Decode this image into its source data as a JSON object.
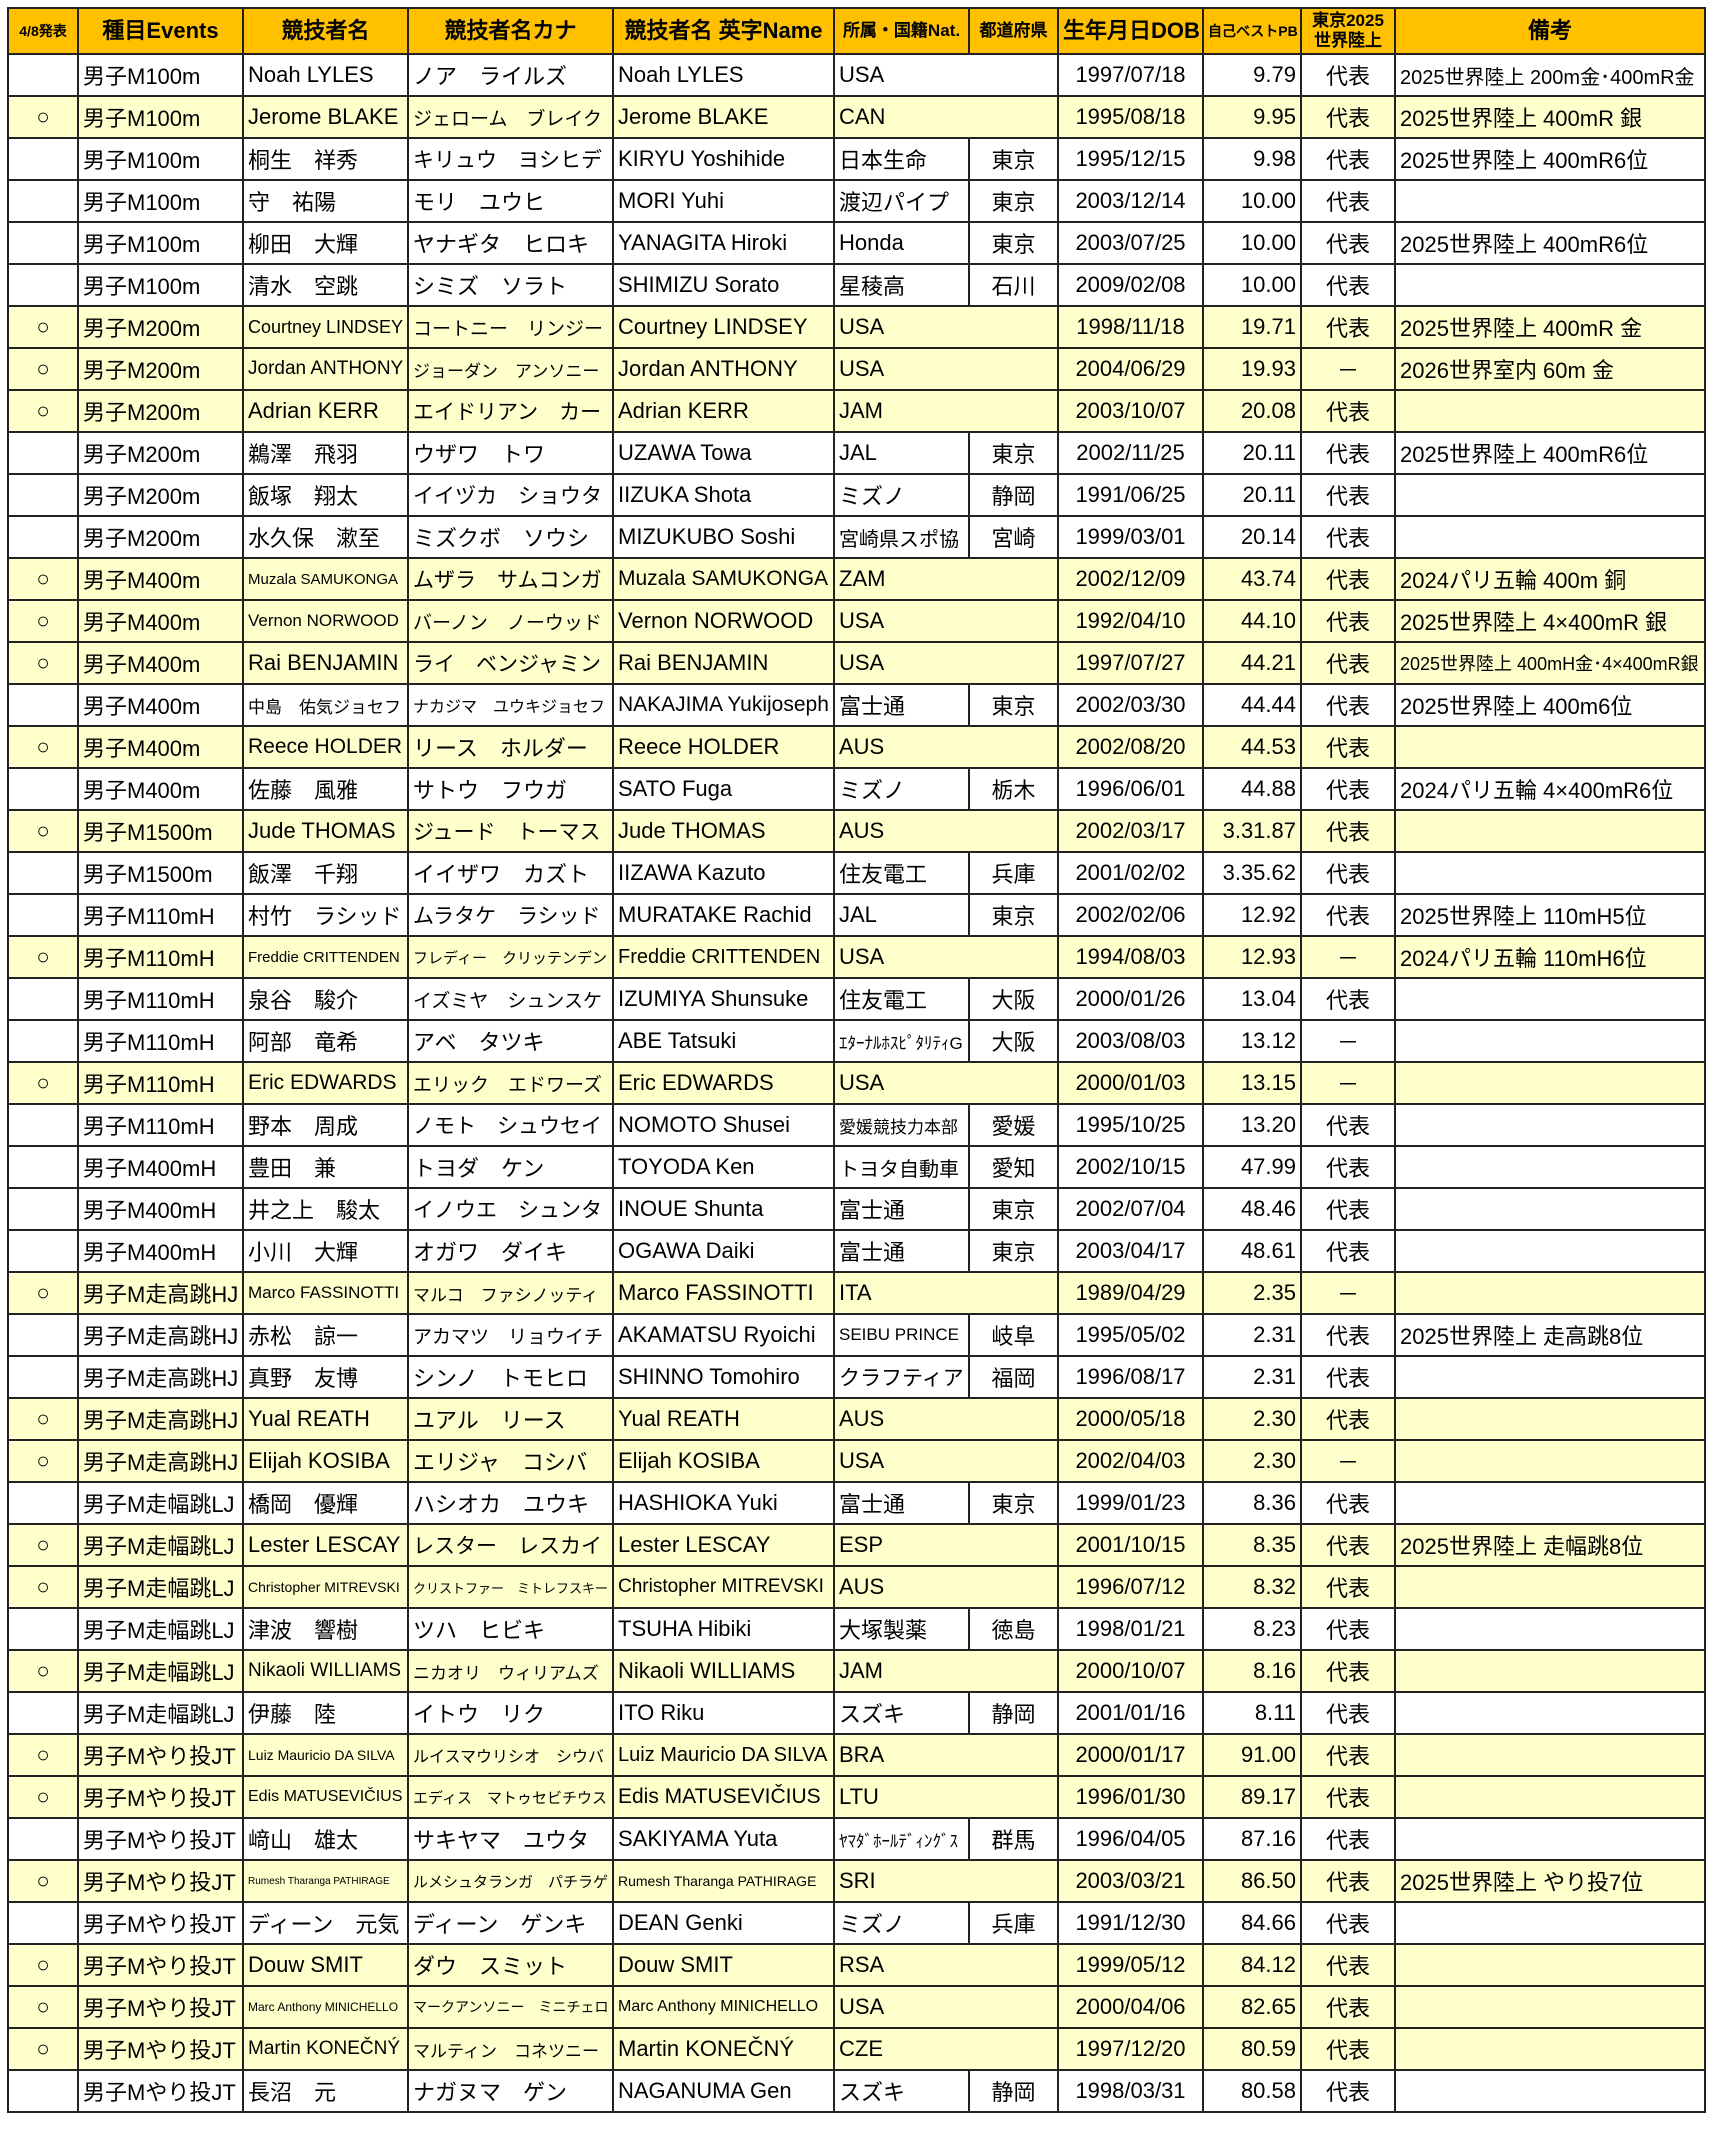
{
  "colors": {
    "header": "#FFC000",
    "highlight_row": "#FFFFCC",
    "border": "#222222"
  },
  "headers": [
    "4/8発表",
    "種目Events",
    "競技者名",
    "競技者名カナ",
    "競技者名 英字Name",
    "所属・国籍Nat.",
    "都道府県",
    "生年月日DOB",
    "自己ベストPB",
    "東京2025 世界陸上",
    "備考"
  ],
  "rows": [
    [
      "",
      "男子M100m",
      "Noah LYLES",
      "ノア　ライルズ",
      "Noah LYLES",
      "USA",
      "",
      "1997/07/18",
      "9.79",
      "代表",
      "2025世界陸上 200m金･400mR金"
    ],
    [
      "○",
      "男子M100m",
      "Jerome BLAKE",
      "ジェローム　ブレイク",
      "Jerome BLAKE",
      "CAN",
      "",
      "1995/08/18",
      "9.95",
      "代表",
      "2025世界陸上 400mR 銀"
    ],
    [
      "",
      "男子M100m",
      "桐生　祥秀",
      "キリュウ　ヨシヒデ",
      "KIRYU Yoshihide",
      "日本生命",
      "東京",
      "1995/12/15",
      "9.98",
      "代表",
      "2025世界陸上 400mR6位"
    ],
    [
      "",
      "男子M100m",
      "守　祐陽",
      "モリ　ユウヒ",
      "MORI Yuhi",
      "渡辺パイプ",
      "東京",
      "2003/12/14",
      "10.00",
      "代表",
      ""
    ],
    [
      "",
      "男子M100m",
      "柳田　大輝",
      "ヤナギタ　ヒロキ",
      "YANAGITA Hiroki",
      "Honda",
      "東京",
      "2003/07/25",
      "10.00",
      "代表",
      "2025世界陸上 400mR6位"
    ],
    [
      "",
      "男子M100m",
      "清水　空跳",
      "シミズ　ソラト",
      "SHIMIZU Sorato",
      "星稜高",
      "石川",
      "2009/02/08",
      "10.00",
      "代表",
      ""
    ],
    [
      "○",
      "男子M200m",
      "Courtney LINDSEY",
      "コートニー　リンジー",
      "Courtney LINDSEY",
      "USA",
      "",
      "1998/11/18",
      "19.71",
      "代表",
      "2025世界陸上 400mR 金"
    ],
    [
      "○",
      "男子M200m",
      "Jordan ANTHONY",
      "ジョーダン　アンソニー",
      "Jordan ANTHONY",
      "USA",
      "",
      "2004/06/29",
      "19.93",
      "－",
      "2026世界室内 60m 金"
    ],
    [
      "○",
      "男子M200m",
      "Adrian KERR",
      "エイドリアン　カー",
      "Adrian KERR",
      "JAM",
      "",
      "2003/10/07",
      "20.08",
      "代表",
      ""
    ],
    [
      "",
      "男子M200m",
      "鵜澤　飛羽",
      "ウザワ　トワ",
      "UZAWA Towa",
      "JAL",
      "東京",
      "2002/11/25",
      "20.11",
      "代表",
      "2025世界陸上 400mR6位"
    ],
    [
      "",
      "男子M200m",
      "飯塚　翔太",
      "イイヅカ　ショウタ",
      "IIZUKA Shota",
      "ミズノ",
      "静岡",
      "1991/06/25",
      "20.11",
      "代表",
      ""
    ],
    [
      "",
      "男子M200m",
      "水久保　漱至",
      "ミズクボ　ソウシ",
      "MIZUKUBO Soshi",
      "宮崎県スポ協",
      "宮崎",
      "1999/03/01",
      "20.14",
      "代表",
      ""
    ],
    [
      "○",
      "男子M400m",
      "Muzala SAMUKONGA",
      "ムザラ　サムコンガ",
      "Muzala SAMUKONGA",
      "ZAM",
      "",
      "2002/12/09",
      "43.74",
      "代表",
      "2024パリ五輪 400m 銅"
    ],
    [
      "○",
      "男子M400m",
      "Vernon NORWOOD",
      "バーノン　ノーウッド",
      "Vernon NORWOOD",
      "USA",
      "",
      "1992/04/10",
      "44.10",
      "代表",
      "2025世界陸上 4×400mR 銀"
    ],
    [
      "○",
      "男子M400m",
      "Rai BENJAMIN",
      "ライ　ベンジャミン",
      "Rai BENJAMIN",
      "USA",
      "",
      "1997/07/27",
      "44.21",
      "代表",
      "2025世界陸上 400mH金･4×400mR銀"
    ],
    [
      "",
      "男子M400m",
      "中島　佑気ジョセフ",
      "ナカジマ　ユウキジョセフ",
      "NAKAJIMA Yukijoseph",
      "富士通",
      "東京",
      "2002/03/30",
      "44.44",
      "代表",
      "2025世界陸上 400m6位"
    ],
    [
      "○",
      "男子M400m",
      "Reece HOLDER",
      "リース　ホルダー",
      "Reece HOLDER",
      "AUS",
      "",
      "2002/08/20",
      "44.53",
      "代表",
      ""
    ],
    [
      "",
      "男子M400m",
      "佐藤　風雅",
      "サトウ　フウガ",
      "SATO Fuga",
      "ミズノ",
      "栃木",
      "1996/06/01",
      "44.88",
      "代表",
      "2024パリ五輪 4×400mR6位"
    ],
    [
      "○",
      "男子M1500m",
      "Jude THOMAS",
      "ジュード　トーマス",
      "Jude THOMAS",
      "AUS",
      "",
      "2002/03/17",
      "3.31.87",
      "代表",
      ""
    ],
    [
      "",
      "男子M1500m",
      "飯澤　千翔",
      "イイザワ　カズト",
      "IIZAWA Kazuto",
      "住友電工",
      "兵庫",
      "2001/02/02",
      "3.35.62",
      "代表",
      ""
    ],
    [
      "",
      "男子M110mH",
      "村竹　ラシッド",
      "ムラタケ　ラシッド",
      "MURATAKE Rachid",
      "JAL",
      "東京",
      "2002/02/06",
      "12.92",
      "代表",
      "2025世界陸上 110mH5位"
    ],
    [
      "○",
      "男子M110mH",
      "Freddie CRITTENDEN",
      "フレディー　クリッテンデン",
      "Freddie CRITTENDEN",
      "USA",
      "",
      "1994/08/03",
      "12.93",
      "－",
      "2024パリ五輪 110mH6位"
    ],
    [
      "",
      "男子M110mH",
      "泉谷　駿介",
      "イズミヤ　シュンスケ",
      "IZUMIYA Shunsuke",
      "住友電工",
      "大阪",
      "2000/01/26",
      "13.04",
      "代表",
      ""
    ],
    [
      "",
      "男子M110mH",
      "阿部　竜希",
      "アベ　タツキ",
      "ABE Tatsuki",
      "ｴﾀｰﾅﾙﾎｽﾋﾟﾀﾘﾃｨG",
      "大阪",
      "2003/08/03",
      "13.12",
      "－",
      ""
    ],
    [
      "○",
      "男子M110mH",
      "Eric EDWARDS",
      "エリック　エドワーズ",
      "Eric EDWARDS",
      "USA",
      "",
      "2000/01/03",
      "13.15",
      "－",
      ""
    ],
    [
      "",
      "男子M110mH",
      "野本　周成",
      "ノモト　シュウセイ",
      "NOMOTO Shusei",
      "愛媛競技力本部",
      "愛媛",
      "1995/10/25",
      "13.20",
      "代表",
      ""
    ],
    [
      "",
      "男子M400mH",
      "豊田　兼",
      "トヨダ　ケン",
      "TOYODA Ken",
      "トヨタ自動車",
      "愛知",
      "2002/10/15",
      "47.99",
      "代表",
      ""
    ],
    [
      "",
      "男子M400mH",
      "井之上　駿太",
      "イノウエ　シュンタ",
      "INOUE Shunta",
      "富士通",
      "東京",
      "2002/07/04",
      "48.46",
      "代表",
      ""
    ],
    [
      "",
      "男子M400mH",
      "小川　大輝",
      "オガワ　ダイキ",
      "OGAWA Daiki",
      "富士通",
      "東京",
      "2003/04/17",
      "48.61",
      "代表",
      ""
    ],
    [
      "○",
      "男子M走高跳HJ",
      "Marco FASSINOTTI",
      "マルコ　ファシノッティ",
      "Marco FASSINOTTI",
      "ITA",
      "",
      "1989/04/29",
      "2.35",
      "－",
      ""
    ],
    [
      "",
      "男子M走高跳HJ",
      "赤松　諒一",
      "アカマツ　リョウイチ",
      "AKAMATSU Ryoichi",
      "SEIBU PRINCE",
      "岐阜",
      "1995/05/02",
      "2.31",
      "代表",
      "2025世界陸上 走高跳8位"
    ],
    [
      "",
      "男子M走高跳HJ",
      "真野　友博",
      "シンノ　トモヒロ",
      "SHINNO Tomohiro",
      "クラフティア",
      "福岡",
      "1996/08/17",
      "2.31",
      "代表",
      ""
    ],
    [
      "○",
      "男子M走高跳HJ",
      "Yual REATH",
      "ユアル　リース",
      "Yual REATH",
      "AUS",
      "",
      "2000/05/18",
      "2.30",
      "代表",
      ""
    ],
    [
      "○",
      "男子M走高跳HJ",
      "Elijah KOSIBA",
      "エリジャ　コシバ",
      "Elijah KOSIBA",
      "USA",
      "",
      "2002/04/03",
      "2.30",
      "－",
      ""
    ],
    [
      "",
      "男子M走幅跳LJ",
      "橋岡　優輝",
      "ハシオカ　ユウキ",
      "HASHIOKA Yuki",
      "富士通",
      "東京",
      "1999/01/23",
      "8.36",
      "代表",
      ""
    ],
    [
      "○",
      "男子M走幅跳LJ",
      "Lester LESCAY",
      "レスター　レスカイ",
      "Lester LESCAY",
      "ESP",
      "",
      "2001/10/15",
      "8.35",
      "代表",
      "2025世界陸上 走幅跳8位"
    ],
    [
      "○",
      "男子M走幅跳LJ",
      "Christopher MITREVSKI",
      "クリストファー　ミトレフスキー",
      "Christopher MITREVSKI",
      "AUS",
      "",
      "1996/07/12",
      "8.32",
      "代表",
      ""
    ],
    [
      "",
      "男子M走幅跳LJ",
      "津波　響樹",
      "ツハ　ヒビキ",
      "TSUHA Hibiki",
      "大塚製薬",
      "徳島",
      "1998/01/21",
      "8.23",
      "代表",
      ""
    ],
    [
      "○",
      "男子M走幅跳LJ",
      "Nikaoli WILLIAMS",
      "ニカオリ　ウィリアムズ",
      "Nikaoli WILLIAMS",
      "JAM",
      "",
      "2000/10/07",
      "8.16",
      "代表",
      ""
    ],
    [
      "",
      "男子M走幅跳LJ",
      "伊藤　陸",
      "イトウ　リク",
      "ITO Riku",
      "スズキ",
      "静岡",
      "2001/01/16",
      "8.11",
      "代表",
      ""
    ],
    [
      "○",
      "男子Mやり投JT",
      "Luiz Mauricio DA SILVA",
      "ルイスマウリシオ　シウバ",
      "Luiz Mauricio DA SILVA",
      "BRA",
      "",
      "2000/01/17",
      "91.00",
      "代表",
      ""
    ],
    [
      "○",
      "男子Mやり投JT",
      "Edis MATUSEVIČIUS",
      "エディス　マトゥセビチウス",
      "Edis MATUSEVIČIUS",
      "LTU",
      "",
      "1996/01/30",
      "89.17",
      "代表",
      ""
    ],
    [
      "",
      "男子Mやり投JT",
      "﨑山　雄太",
      "サキヤマ　ユウタ",
      "SAKIYAMA Yuta",
      "ﾔﾏﾀﾞﾎｰﾙﾃﾞｨﾝｸﾞｽ",
      "群馬",
      "1996/04/05",
      "87.16",
      "代表",
      ""
    ],
    [
      "○",
      "男子Mやり投JT",
      "Rumesh Tharanga PATHIRAGE",
      "ルメシュタランガ　パチラゲ",
      "Rumesh Tharanga PATHIRAGE",
      "SRI",
      "",
      "2003/03/21",
      "86.50",
      "代表",
      "2025世界陸上 やり投7位"
    ],
    [
      "",
      "男子Mやり投JT",
      "ディーン　元気",
      "ディーン　ゲンキ",
      "DEAN Genki",
      "ミズノ",
      "兵庫",
      "1991/12/30",
      "84.66",
      "代表",
      ""
    ],
    [
      "○",
      "男子Mやり投JT",
      "Douw SMIT",
      "ダウ　スミット",
      "Douw SMIT",
      "RSA",
      "",
      "1999/05/12",
      "84.12",
      "代表",
      ""
    ],
    [
      "○",
      "男子Mやり投JT",
      "Marc Anthony MINICHELLO",
      "マークアンソニー　ミニチェロ",
      "Marc Anthony MINICHELLO",
      "USA",
      "",
      "2000/04/06",
      "82.65",
      "代表",
      ""
    ],
    [
      "○",
      "男子Mやり投JT",
      "Martin KONEČNÝ",
      "マルティン　コネツニー",
      "Martin KONEČNÝ",
      "CZE",
      "",
      "1997/12/20",
      "80.59",
      "代表",
      ""
    ],
    [
      "",
      "男子Mやり投JT",
      "長沼　元",
      "ナガヌマ　ゲン",
      "NAGANUMA Gen",
      "スズキ",
      "静岡",
      "1998/03/31",
      "80.58",
      "代表",
      ""
    ]
  ]
}
